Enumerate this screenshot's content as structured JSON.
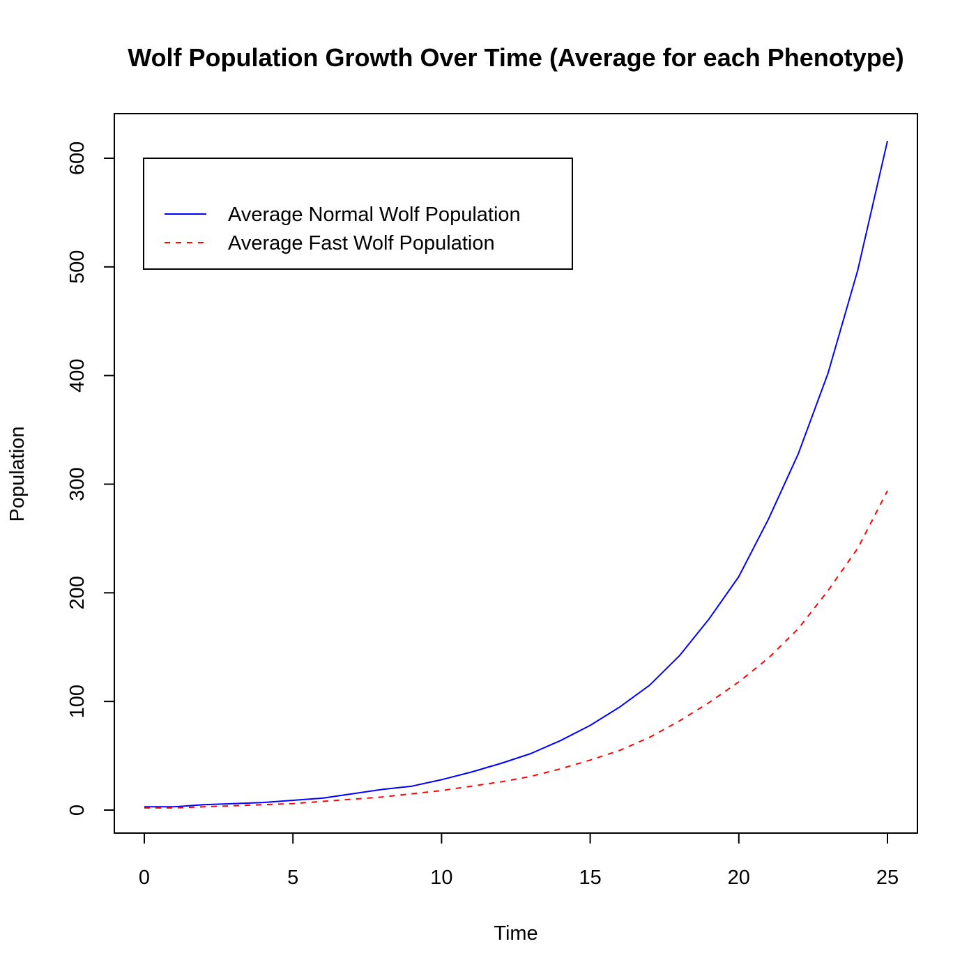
{
  "chart_data": {
    "type": "line",
    "title": "Wolf Population Growth Over Time (Average for each Phenotype)",
    "xlabel": "Time",
    "ylabel": "Population",
    "xlim": [
      0,
      25
    ],
    "ylim": [
      0,
      600
    ],
    "xticks": [
      0,
      5,
      10,
      15,
      20,
      25
    ],
    "yticks": [
      0,
      100,
      200,
      300,
      400,
      500,
      600
    ],
    "grid": false,
    "legend": "top-left",
    "x": [
      0,
      1,
      2,
      3,
      4,
      5,
      6,
      7,
      8,
      9,
      10,
      11,
      12,
      13,
      14,
      15,
      16,
      17,
      18,
      19,
      20,
      21,
      22,
      23,
      24,
      25
    ],
    "series": [
      {
        "name": "Average Normal Wolf Population",
        "color": "#0000ff",
        "dash": "solid",
        "values": [
          3,
          3,
          5,
          6,
          7,
          9,
          11,
          15,
          19,
          22,
          28,
          35,
          43,
          52,
          64,
          78,
          95,
          115,
          142,
          176,
          215,
          268,
          328,
          402,
          497,
          616
        ]
      },
      {
        "name": "Average Fast Wolf Population",
        "color": "#ff0000",
        "dash": "dashed",
        "values": [
          2,
          2,
          3,
          4,
          5,
          6,
          8,
          10,
          12,
          15,
          18,
          22,
          26,
          31,
          38,
          46,
          55,
          67,
          82,
          99,
          118,
          140,
          167,
          202,
          241,
          294
        ]
      }
    ]
  }
}
